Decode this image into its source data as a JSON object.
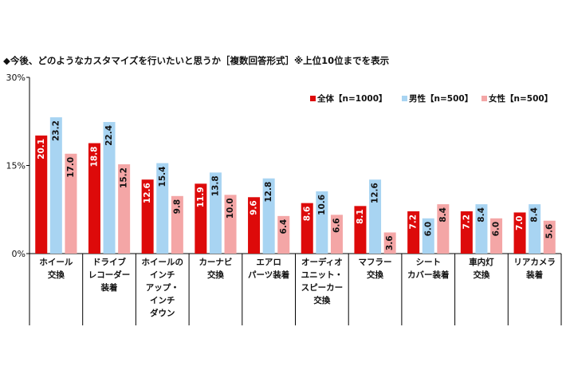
{
  "chart_data": {
    "type": "bar",
    "title": "◆今後、どのようなカスタマイズを行いたいと思うか［複数回答形式］※上位10位までを表示",
    "y_ticks": [
      "30%",
      "15%",
      "0%"
    ],
    "ylim": [
      0,
      30
    ],
    "categories": [
      [
        "ホイール",
        "交換"
      ],
      [
        "ドライブ",
        "レコーダー",
        "装着"
      ],
      [
        "ホイールの",
        "インチ",
        "アップ・",
        "インチ",
        "ダウン"
      ],
      [
        "カーナビ",
        "交換"
      ],
      [
        "エアロ",
        "パーツ装着"
      ],
      [
        "オーディオ",
        "ユニット・",
        "スピーカー",
        "交換"
      ],
      [
        "マフラー",
        "交換"
      ],
      [
        "シート",
        "カバー装着"
      ],
      [
        "車内灯",
        "交換"
      ],
      [
        "リアカメラ",
        "装着"
      ]
    ],
    "series": [
      {
        "name": "全体【n=1000】",
        "color": "#dd0a0a",
        "values": [
          20.1,
          18.8,
          12.6,
          11.9,
          9.6,
          8.6,
          8.1,
          7.2,
          7.2,
          7.0
        ],
        "labels": [
          "20.1",
          "18.8",
          "12.6",
          "11.9",
          "9.6",
          "8.6",
          "8.1",
          "7.2",
          "7.2",
          "7.0"
        ]
      },
      {
        "name": "男性【n=500】",
        "color": "#a8d4f2",
        "values": [
          23.2,
          22.4,
          15.4,
          13.8,
          12.8,
          10.6,
          12.6,
          6.0,
          8.4,
          8.4
        ],
        "labels": [
          "23.2",
          "22.4",
          "15.4",
          "13.8",
          "12.8",
          "10.6",
          "12.6",
          "6.0",
          "8.4",
          "8.4"
        ]
      },
      {
        "name": "女性【n=500】",
        "color": "#f4a6a6",
        "values": [
          17.0,
          15.2,
          9.8,
          10.0,
          6.4,
          6.6,
          3.6,
          8.4,
          6.0,
          5.6
        ],
        "labels": [
          "17.0",
          "15.2",
          "9.8",
          "10.0",
          "6.4",
          "6.6",
          "3.6",
          "8.4",
          "6.0",
          "5.6"
        ]
      }
    ]
  }
}
